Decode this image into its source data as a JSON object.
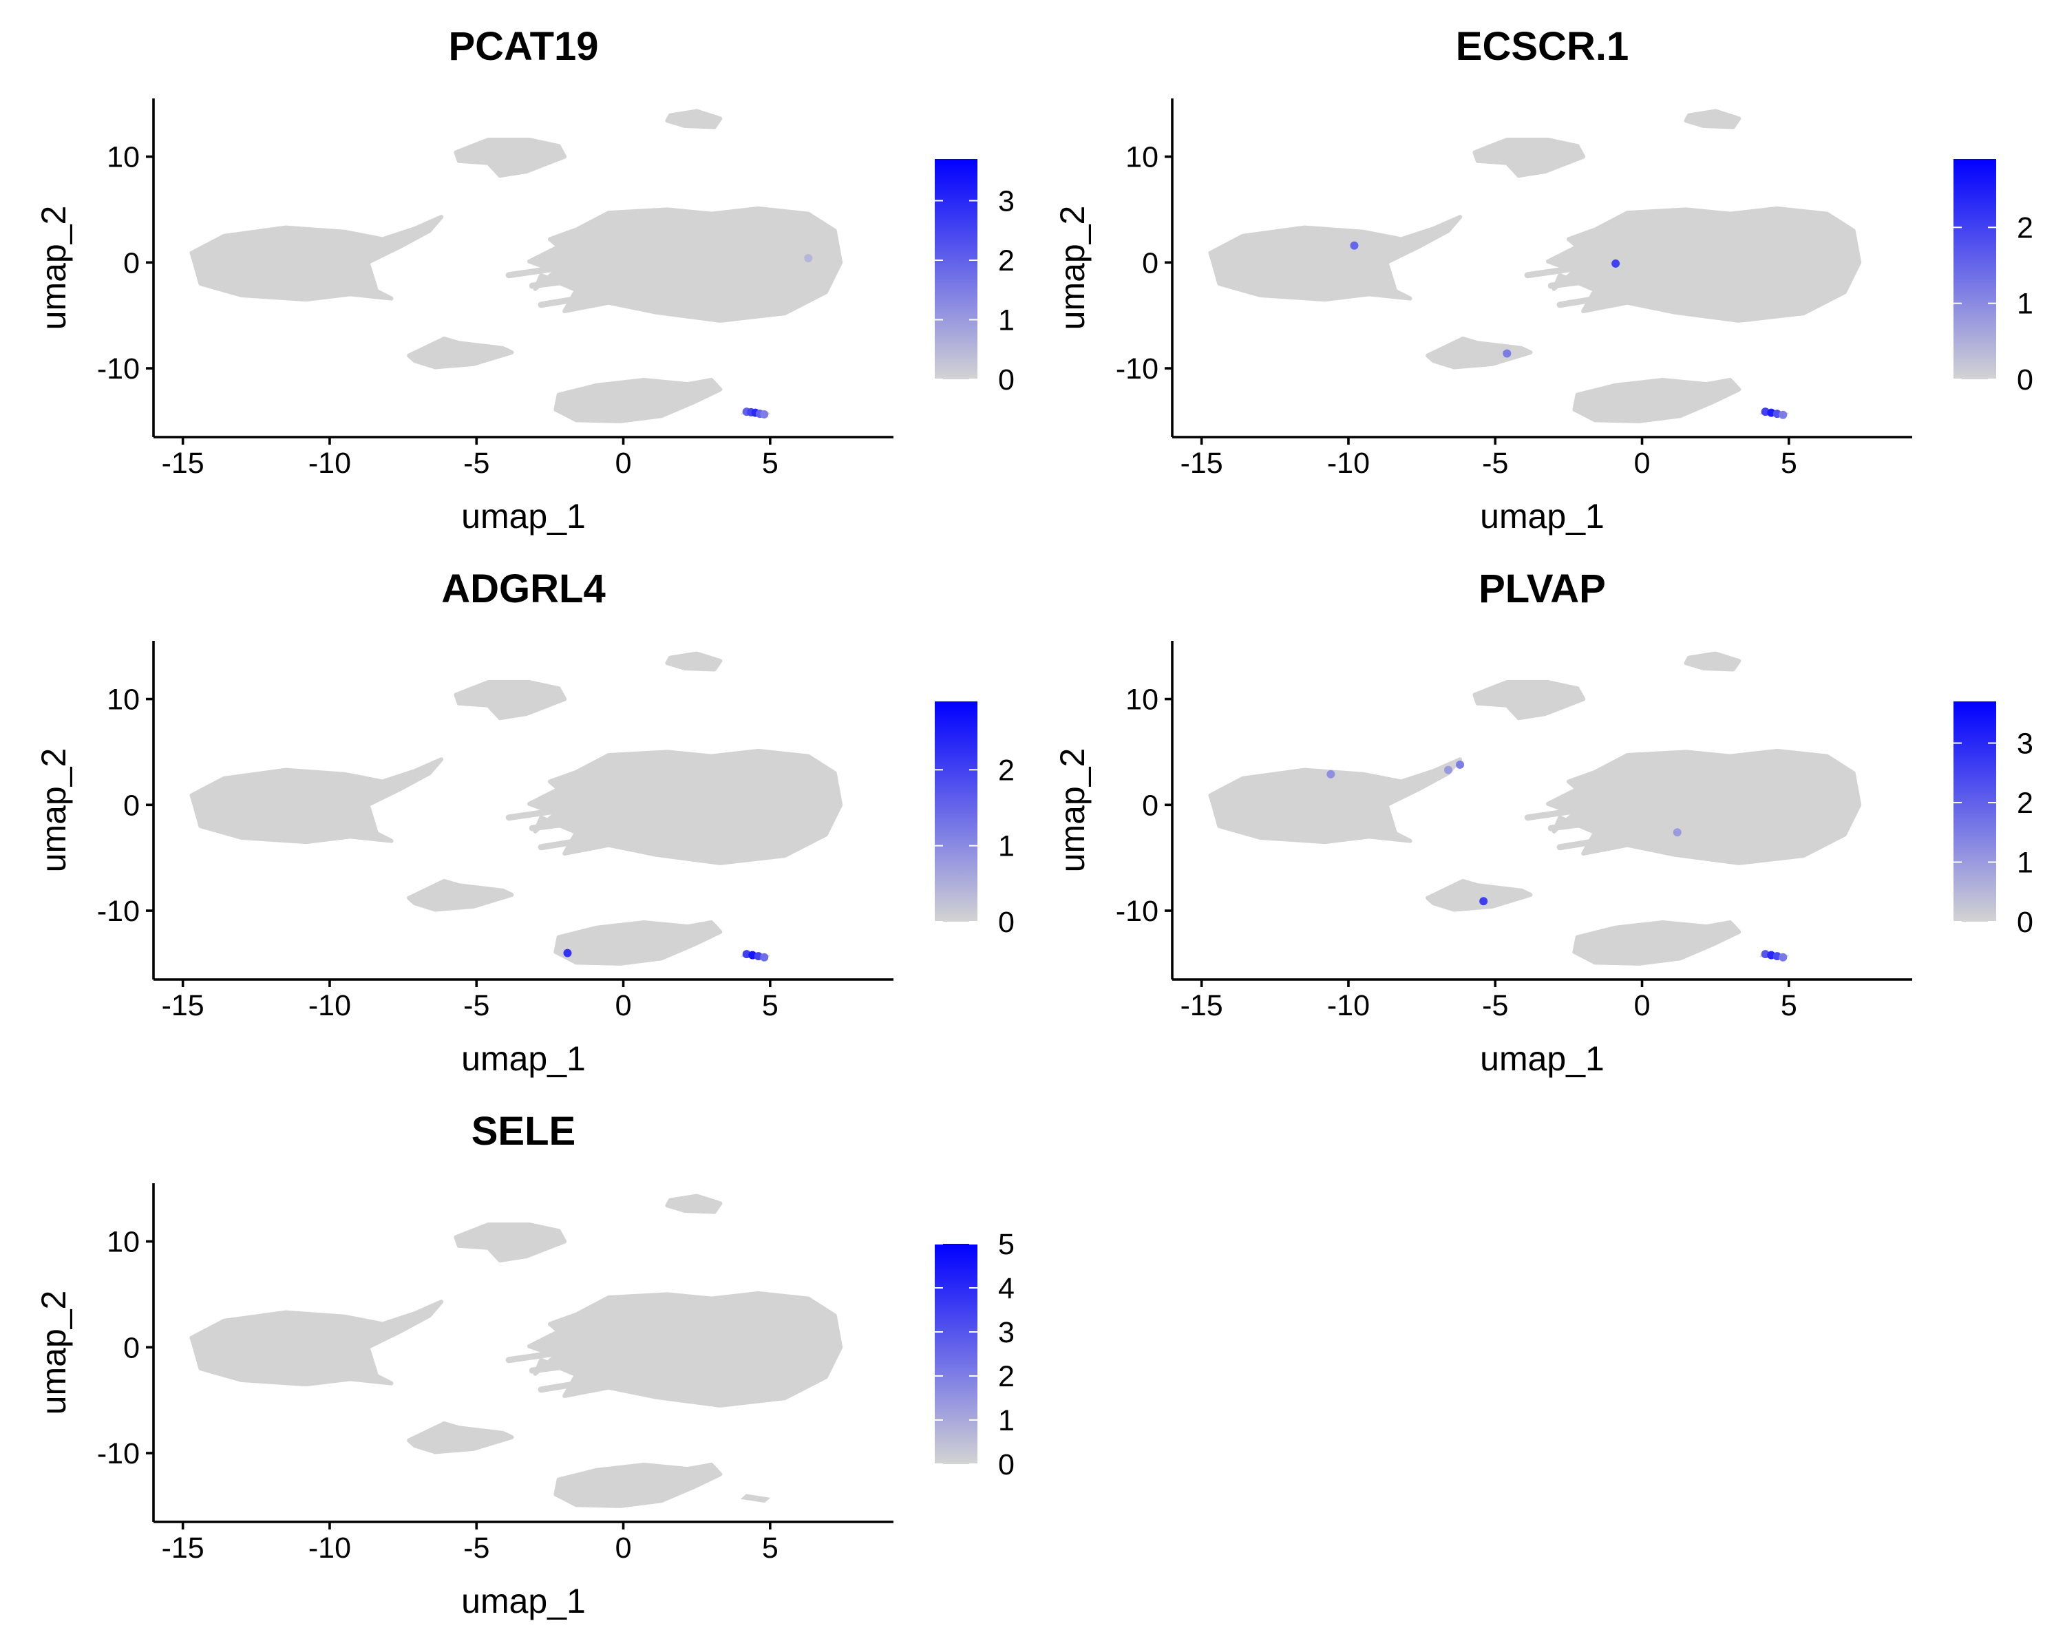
{
  "chart_data": {
    "type": "scatter",
    "feature_plots": [
      {
        "title": "PCAT19",
        "xlabel": "umap_1",
        "ylabel": "umap_2",
        "xlim": [
          -16,
          9.2
        ],
        "ylim": [
          -16.5,
          15.5
        ],
        "x_ticks": [
          -15,
          -10,
          -5,
          0,
          5
        ],
        "y_ticks": [
          -10,
          0,
          10
        ],
        "colorbar": {
          "min": 0,
          "max": 3.7,
          "ticks": [
            0,
            1,
            2,
            3
          ],
          "low_color": "#d3d3d3",
          "high_color": "#0000ff"
        },
        "highlighted_cells": [
          {
            "x": 4.2,
            "y": -14.1,
            "value": 2.0
          },
          {
            "x": 4.35,
            "y": -14.15,
            "value": 2.5
          },
          {
            "x": 4.5,
            "y": -14.2,
            "value": 3.0
          },
          {
            "x": 4.65,
            "y": -14.3,
            "value": 2.0
          },
          {
            "x": 4.8,
            "y": -14.35,
            "value": 1.5
          },
          {
            "x": 6.3,
            "y": 0.4,
            "value": 0.5
          }
        ]
      },
      {
        "title": "ECSCR.1",
        "xlabel": "umap_1",
        "ylabel": "umap_2",
        "xlim": [
          -16,
          9.2
        ],
        "ylim": [
          -16.5,
          15.5
        ],
        "x_ticks": [
          -15,
          -10,
          -5,
          0,
          5
        ],
        "y_ticks": [
          -10,
          0,
          10
        ],
        "colorbar": {
          "min": 0,
          "max": 2.9,
          "ticks": [
            0,
            1,
            2
          ],
          "low_color": "#d3d3d3",
          "high_color": "#0000ff"
        },
        "highlighted_cells": [
          {
            "x": -9.8,
            "y": 1.6,
            "value": 1.5
          },
          {
            "x": -0.9,
            "y": -0.1,
            "value": 2.0
          },
          {
            "x": -4.6,
            "y": -8.6,
            "value": 1.2
          },
          {
            "x": 4.2,
            "y": -14.1,
            "value": 2.0
          },
          {
            "x": 4.4,
            "y": -14.2,
            "value": 2.5
          },
          {
            "x": 4.6,
            "y": -14.3,
            "value": 1.8
          },
          {
            "x": 4.8,
            "y": -14.4,
            "value": 1.2
          }
        ]
      },
      {
        "title": "ADGRL4",
        "xlabel": "umap_1",
        "ylabel": "umap_2",
        "xlim": [
          -16,
          9.2
        ],
        "ylim": [
          -16.5,
          15.5
        ],
        "x_ticks": [
          -15,
          -10,
          -5,
          0,
          5
        ],
        "y_ticks": [
          -10,
          0,
          10
        ],
        "colorbar": {
          "min": 0,
          "max": 2.9,
          "ticks": [
            0,
            1,
            2
          ],
          "low_color": "#d3d3d3",
          "high_color": "#0000ff"
        },
        "highlighted_cells": [
          {
            "x": -1.9,
            "y": -14.0,
            "value": 2.2
          },
          {
            "x": 4.2,
            "y": -14.1,
            "value": 2.0
          },
          {
            "x": 4.4,
            "y": -14.2,
            "value": 2.6
          },
          {
            "x": 4.6,
            "y": -14.3,
            "value": 2.0
          },
          {
            "x": 4.8,
            "y": -14.4,
            "value": 1.4
          }
        ]
      },
      {
        "title": "PLVAP",
        "xlabel": "umap_1",
        "ylabel": "umap_2",
        "xlim": [
          -16,
          9.2
        ],
        "ylim": [
          -16.5,
          15.5
        ],
        "x_ticks": [
          -15,
          -10,
          -5,
          0,
          5
        ],
        "y_ticks": [
          -10,
          0,
          10
        ],
        "colorbar": {
          "min": 0,
          "max": 3.7,
          "ticks": [
            0,
            1,
            2,
            3
          ],
          "low_color": "#d3d3d3",
          "high_color": "#0000ff"
        },
        "highlighted_cells": [
          {
            "x": -10.6,
            "y": 2.9,
            "value": 1.2
          },
          {
            "x": -6.2,
            "y": 3.8,
            "value": 1.5
          },
          {
            "x": -6.6,
            "y": 3.3,
            "value": 1.0
          },
          {
            "x": -5.4,
            "y": -9.1,
            "value": 2.6
          },
          {
            "x": 1.2,
            "y": -2.6,
            "value": 1.0
          },
          {
            "x": 4.2,
            "y": -14.1,
            "value": 2.2
          },
          {
            "x": 4.4,
            "y": -14.2,
            "value": 3.0
          },
          {
            "x": 4.6,
            "y": -14.3,
            "value": 2.4
          },
          {
            "x": 4.8,
            "y": -14.4,
            "value": 1.6
          }
        ]
      },
      {
        "title": "SELE",
        "xlabel": "umap_1",
        "ylabel": "umap_2",
        "xlim": [
          -16,
          9.2
        ],
        "ylim": [
          -16.5,
          15.5
        ],
        "x_ticks": [
          -15,
          -10,
          -5,
          0,
          5
        ],
        "y_ticks": [
          -10,
          0,
          10
        ],
        "colorbar": {
          "min": 0,
          "max": 5,
          "ticks": [
            0,
            1,
            2,
            3,
            4,
            5
          ],
          "low_color": "#d3d3d3",
          "high_color": "#0000ff"
        },
        "highlighted_cells": []
      }
    ]
  }
}
